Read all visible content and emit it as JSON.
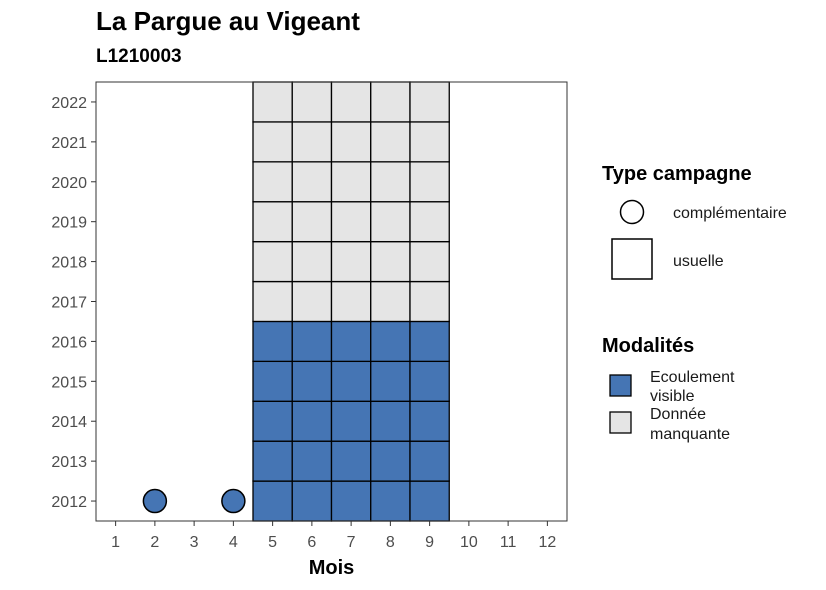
{
  "title": "La Pargue au Vigeant",
  "subtitle": "L1210003",
  "chart_data": {
    "type": "heatmap",
    "title": "La Pargue au Vigeant",
    "subtitle": "L1210003",
    "xlabel": "Mois",
    "ylabel": "",
    "x_ticks": [
      1,
      2,
      3,
      4,
      5,
      6,
      7,
      8,
      9,
      10,
      11,
      12
    ],
    "y_ticks": [
      2012,
      2013,
      2014,
      2015,
      2016,
      2017,
      2018,
      2019,
      2020,
      2021,
      2022
    ],
    "xlim": [
      0.5,
      12.5
    ],
    "ylim": [
      2011.5,
      2022.5
    ],
    "grid": false,
    "legend_position": "right",
    "modalities": [
      {
        "label": "Ecoulement visible",
        "label_lines": [
          "Ecoulement",
          "visible"
        ],
        "color": "#4575B4"
      },
      {
        "label": "Donnée manquante",
        "label_lines": [
          "Donnée",
          "manquante"
        ],
        "color": "#E5E5E5"
      }
    ],
    "campaign_types": [
      {
        "label": "complémentaire",
        "shape": "circle"
      },
      {
        "label": "usuelle",
        "shape": "square"
      }
    ],
    "legend_titles": {
      "campaign": "Type campagne",
      "modality": "Modalités"
    },
    "usuelle": [
      {
        "year": 2012,
        "months": [
          5,
          6,
          7,
          8,
          9
        ],
        "modality": "Ecoulement visible"
      },
      {
        "year": 2013,
        "months": [
          5,
          6,
          7,
          8,
          9
        ],
        "modality": "Ecoulement visible"
      },
      {
        "year": 2014,
        "months": [
          5,
          6,
          7,
          8,
          9
        ],
        "modality": "Ecoulement visible"
      },
      {
        "year": 2015,
        "months": [
          5,
          6,
          7,
          8,
          9
        ],
        "modality": "Ecoulement visible"
      },
      {
        "year": 2016,
        "months": [
          5,
          6,
          7,
          8,
          9
        ],
        "modality": "Ecoulement visible"
      },
      {
        "year": 2017,
        "months": [
          5,
          6,
          7,
          8,
          9
        ],
        "modality": "Donnée manquante"
      },
      {
        "year": 2018,
        "months": [
          5,
          6,
          7,
          8,
          9
        ],
        "modality": "Donnée manquante"
      },
      {
        "year": 2019,
        "months": [
          5,
          6,
          7,
          8,
          9
        ],
        "modality": "Donnée manquante"
      },
      {
        "year": 2020,
        "months": [
          5,
          6,
          7,
          8,
          9
        ],
        "modality": "Donnée manquante"
      },
      {
        "year": 2021,
        "months": [
          5,
          6,
          7,
          8,
          9
        ],
        "modality": "Donnée manquante"
      },
      {
        "year": 2022,
        "months": [
          5,
          6,
          7,
          8,
          9
        ],
        "modality": "Donnée manquante"
      }
    ],
    "complementaire": [
      {
        "year": 2012,
        "month": 2,
        "modality": "Ecoulement visible"
      },
      {
        "year": 2012,
        "month": 4,
        "modality": "Ecoulement visible"
      }
    ]
  }
}
